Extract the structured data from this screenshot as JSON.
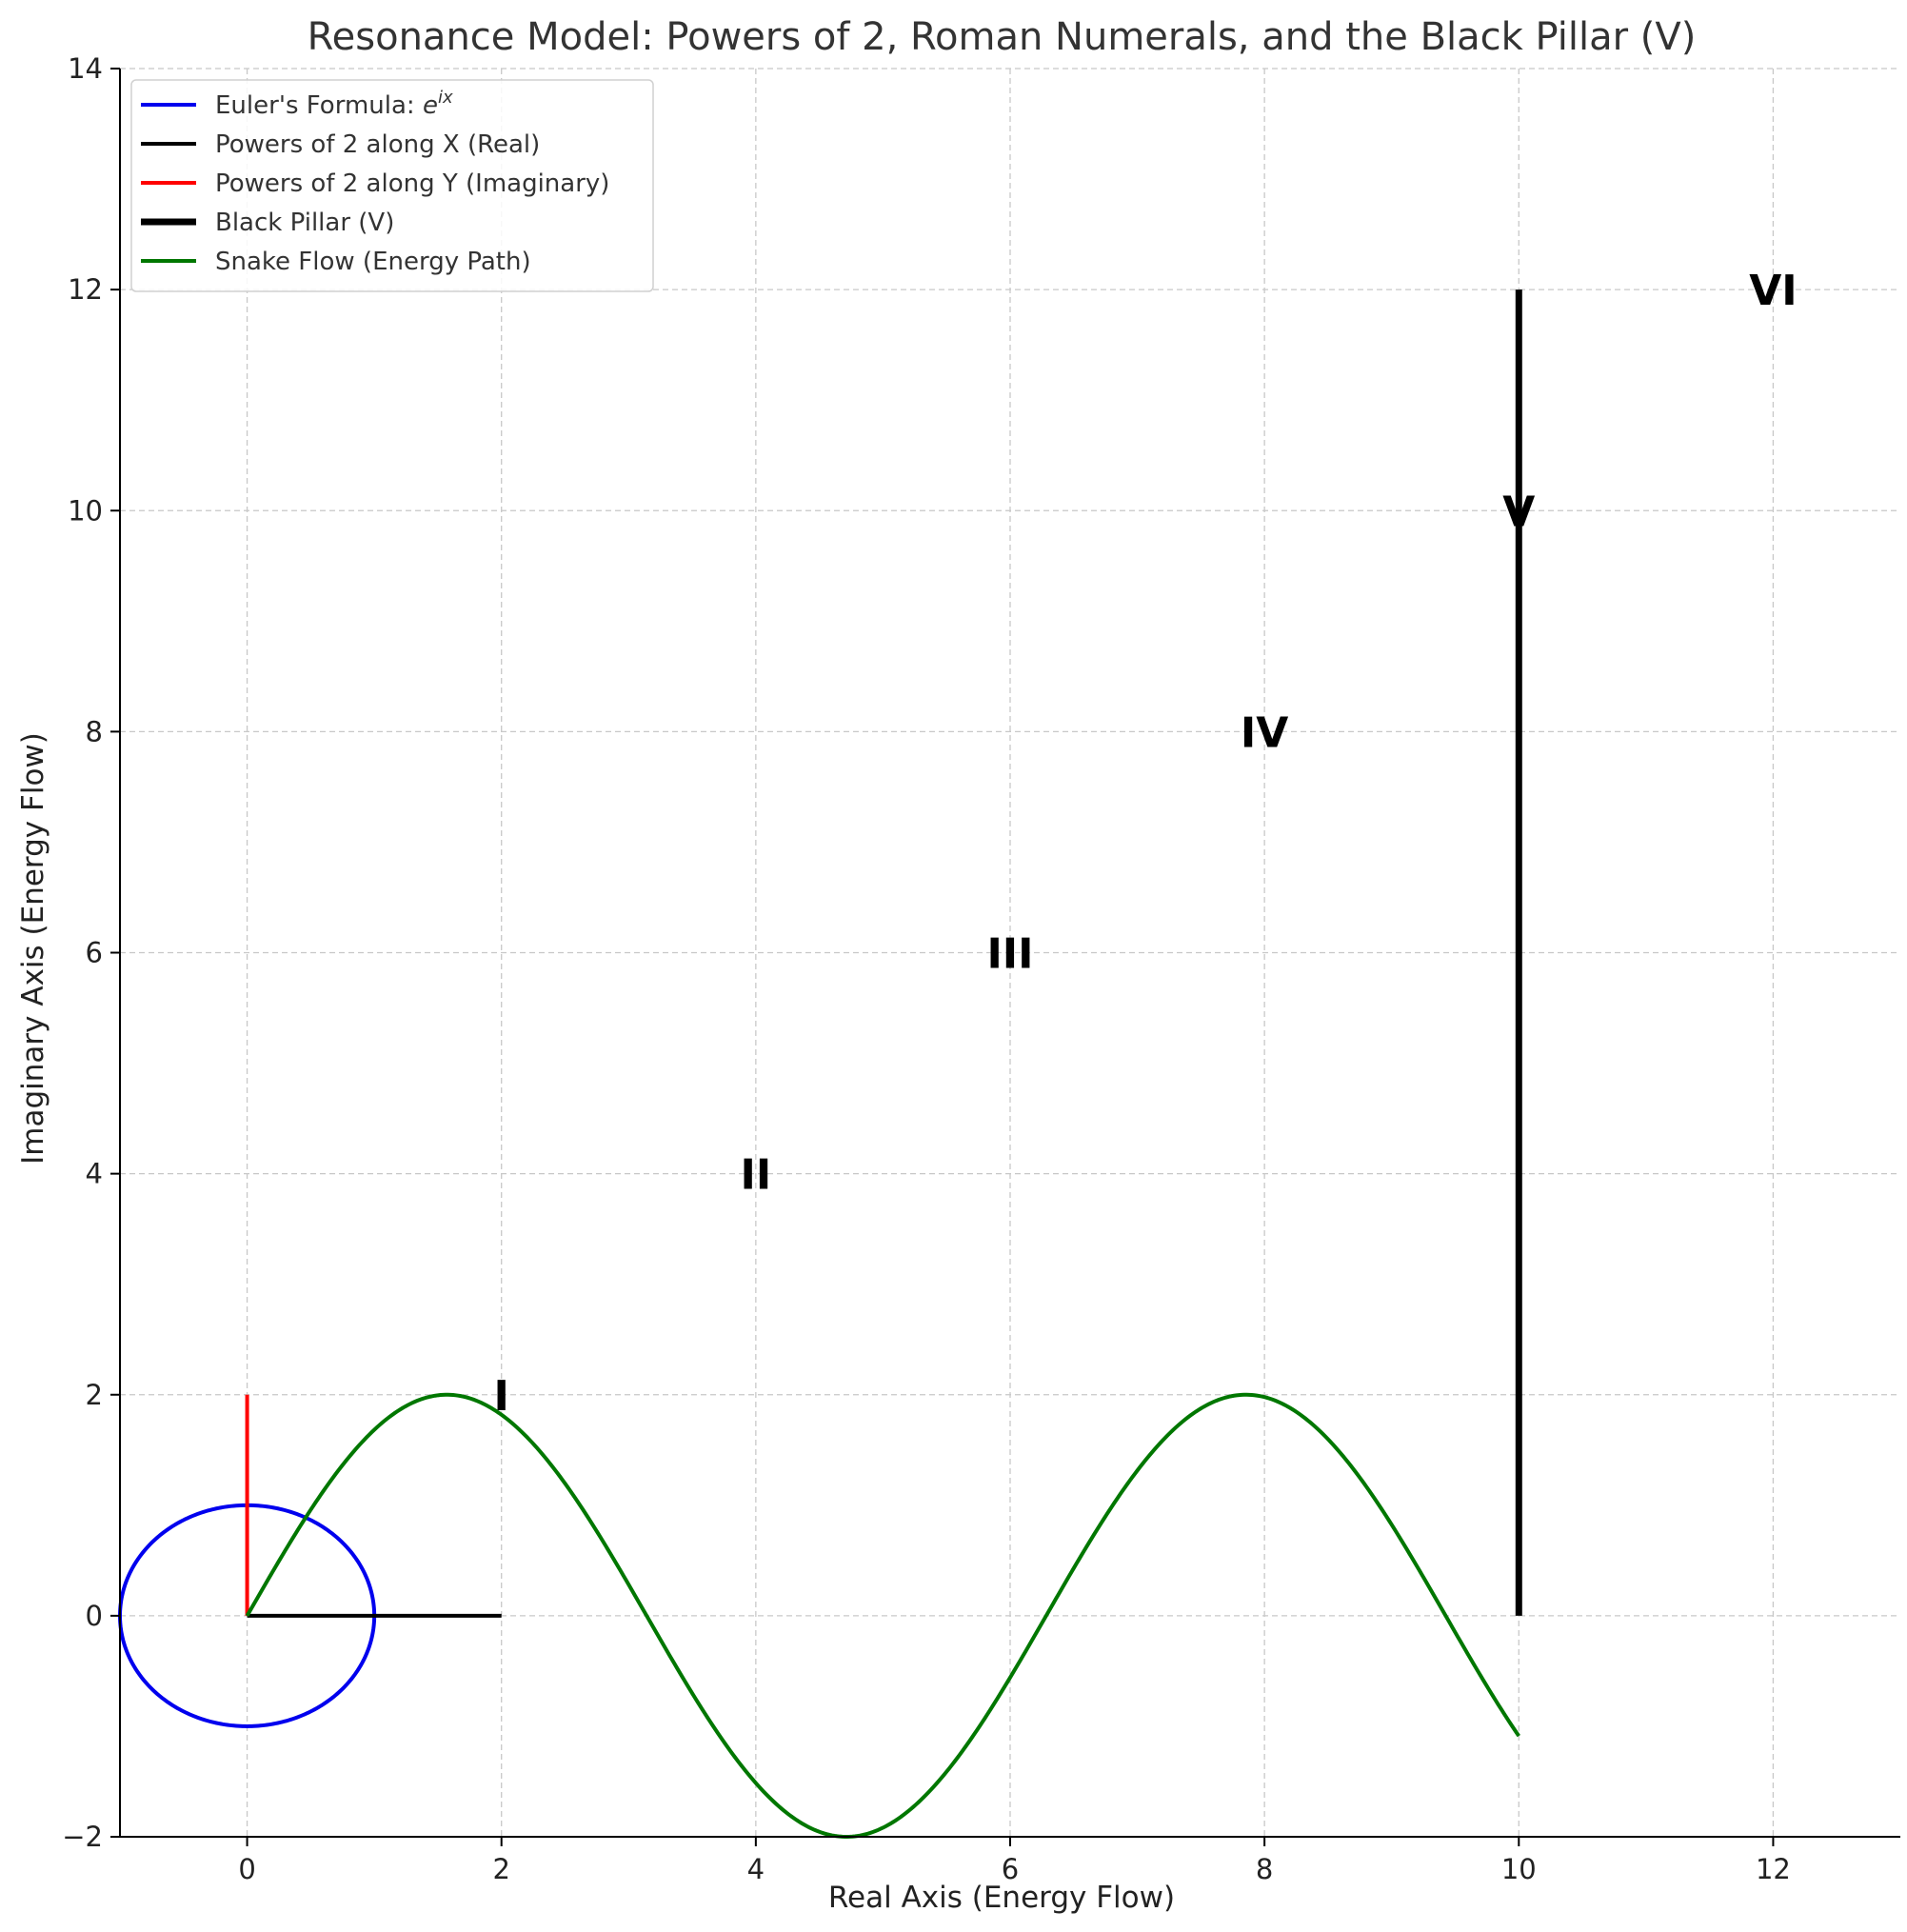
{
  "chart_data": {
    "type": "line",
    "title": "Resonance Model: Powers of 2, Roman Numerals, and the Black Pillar (V)",
    "xlabel": "Real Axis (Energy Flow)",
    "ylabel": "Imaginary Axis (Energy Flow)",
    "xlim": [
      -1,
      13
    ],
    "ylim": [
      -2,
      14
    ],
    "x_ticks": [
      0,
      2,
      4,
      6,
      8,
      10,
      12
    ],
    "y_ticks": [
      -2,
      0,
      2,
      4,
      6,
      8,
      10,
      12,
      14
    ],
    "x_tick_labels": [
      "0",
      "2",
      "4",
      "6",
      "8",
      "10",
      "12"
    ],
    "y_tick_labels": [
      "−2",
      "0",
      "2",
      "4",
      "6",
      "8",
      "10",
      "12",
      "14"
    ],
    "grid": true,
    "legend_position": "upper-left",
    "series": [
      {
        "key": "euler",
        "name": "Euler's Formula: ",
        "name_math": "e^(ix)",
        "kind": "circle",
        "center": [
          0,
          0
        ],
        "radius": 1,
        "color": "#0000ee",
        "width": 1
      },
      {
        "key": "powx",
        "name": "Powers of 2 along X (Real)",
        "kind": "segment",
        "points": [
          [
            0,
            0
          ],
          [
            2,
            0
          ]
        ],
        "color": "#000000",
        "width": 1
      },
      {
        "key": "powy",
        "name": "Powers of 2 along Y (Imaginary)",
        "kind": "segment",
        "points": [
          [
            0,
            0
          ],
          [
            0,
            2
          ]
        ],
        "color": "#ff0000",
        "width": 1
      },
      {
        "key": "pillar",
        "name": "Black Pillar (V)",
        "kind": "segment",
        "points": [
          [
            10,
            0
          ],
          [
            10,
            12
          ]
        ],
        "color": "#000000",
        "width": 2
      },
      {
        "key": "snake",
        "name": "Snake Flow (Energy Path)",
        "kind": "function",
        "formula": "2*sin(x)",
        "domain": [
          0,
          10
        ],
        "color": "#007700",
        "width": 1
      }
    ],
    "annotations": [
      {
        "text": "I",
        "x": 2,
        "y": 2
      },
      {
        "text": "II",
        "x": 4,
        "y": 4
      },
      {
        "text": "III",
        "x": 6,
        "y": 6
      },
      {
        "text": "IV",
        "x": 8,
        "y": 8
      },
      {
        "text": "V",
        "x": 10,
        "y": 10
      },
      {
        "text": "VI",
        "x": 12,
        "y": 12
      }
    ]
  }
}
